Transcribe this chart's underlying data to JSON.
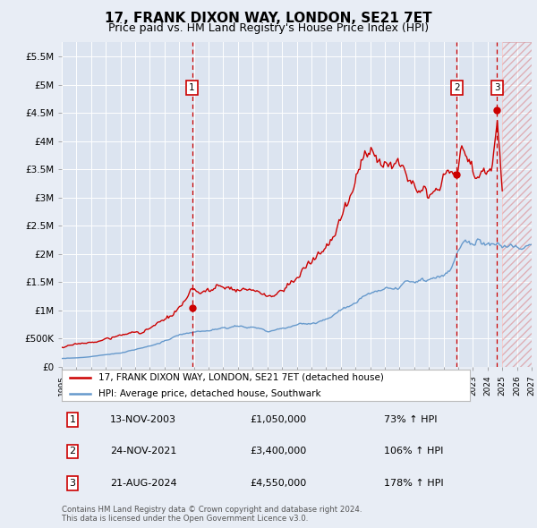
{
  "title": "17, FRANK DIXON WAY, LONDON, SE21 7ET",
  "subtitle": "Price paid vs. HM Land Registry's House Price Index (HPI)",
  "ylabel_ticks": [
    "£0",
    "£500K",
    "£1M",
    "£1.5M",
    "£2M",
    "£2.5M",
    "£3M",
    "£3.5M",
    "£4M",
    "£4.5M",
    "£5M",
    "£5.5M"
  ],
  "ytick_values": [
    0,
    500000,
    1000000,
    1500000,
    2000000,
    2500000,
    3000000,
    3500000,
    4000000,
    4500000,
    5000000,
    5500000
  ],
  "ymax": 5750000,
  "xmin": 1995,
  "xmax": 2027,
  "sale_dates": [
    2003.87,
    2021.9,
    2024.64
  ],
  "sale_prices": [
    1050000,
    3400000,
    4550000
  ],
  "sale_labels": [
    "1",
    "2",
    "3"
  ],
  "sale_date_strs": [
    "13-NOV-2003",
    "24-NOV-2021",
    "21-AUG-2024"
  ],
  "sale_price_strs": [
    "£1,050,000",
    "£3,400,000",
    "£4,550,000"
  ],
  "sale_pct_strs": [
    "73% ↑ HPI",
    "106% ↑ HPI",
    "178% ↑ HPI"
  ],
  "background_color": "#e8edf5",
  "plot_bg_color": "#dce4f0",
  "grid_color": "#ffffff",
  "red_line_color": "#cc0000",
  "blue_line_color": "#6699cc",
  "legend_label_red": "17, FRANK DIXON WAY, LONDON, SE21 7ET (detached house)",
  "legend_label_blue": "HPI: Average price, detached house, Southwark",
  "footnote": "Contains HM Land Registry data © Crown copyright and database right 2024.\nThis data is licensed under the Open Government Licence v3.0.",
  "title_fontsize": 11,
  "subtitle_fontsize": 9
}
